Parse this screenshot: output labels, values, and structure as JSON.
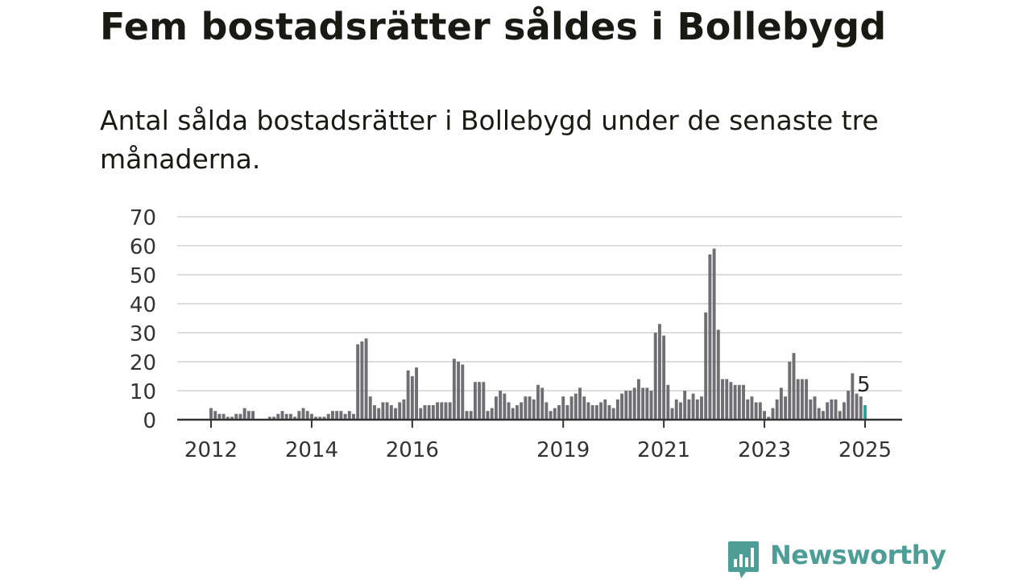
{
  "header": {
    "title": "Fem bostadsrätter såldes i Bollebygd",
    "subtitle": "Antal sålda bostadsrätter i Bollebygd under de senaste tre månaderna."
  },
  "chart_data": {
    "type": "bar",
    "ylim": [
      0,
      70
    ],
    "y_ticks": [
      "0",
      "10",
      "20",
      "30",
      "40",
      "50",
      "60",
      "70"
    ],
    "x_ticks": [
      "2012",
      "2014",
      "2016",
      "2019",
      "2021",
      "2023",
      "2025"
    ],
    "grid": true,
    "bar_color": "#6e6e73",
    "highlight_color": "#2aa198",
    "highlight_label": "5",
    "values": [
      4,
      3,
      2,
      2,
      1,
      1,
      2,
      2,
      4,
      3,
      3,
      0,
      0,
      0,
      1,
      1,
      2,
      3,
      2,
      2,
      1,
      3,
      4,
      3,
      2,
      1,
      1,
      1,
      2,
      3,
      3,
      3,
      2,
      3,
      2,
      26,
      27,
      28,
      8,
      5,
      4,
      6,
      6,
      5,
      4,
      6,
      7,
      17,
      15,
      18,
      4,
      5,
      5,
      5,
      6,
      6,
      6,
      6,
      21,
      20,
      19,
      3,
      3,
      13,
      13,
      13,
      3,
      4,
      8,
      10,
      9,
      6,
      4,
      5,
      6,
      8,
      8,
      7,
      12,
      11,
      6,
      3,
      4,
      5,
      8,
      5,
      8,
      9,
      11,
      8,
      6,
      5,
      5,
      6,
      7,
      5,
      4,
      7,
      9,
      10,
      10,
      11,
      14,
      11,
      11,
      10,
      30,
      33,
      29,
      12,
      4,
      7,
      6,
      10,
      7,
      9,
      7,
      8,
      37,
      57,
      59,
      31,
      14,
      14,
      13,
      12,
      12,
      12,
      7,
      8,
      6,
      6,
      3,
      1,
      4,
      7,
      11,
      8,
      20,
      23,
      14,
      14,
      14,
      7,
      8,
      4,
      3,
      6,
      7,
      7,
      3,
      6,
      10,
      16,
      9,
      8,
      5
    ]
  },
  "branding": {
    "name": "Newsworthy",
    "color": "#4e9e98",
    "icon": "newsworthy-logo-icon"
  }
}
